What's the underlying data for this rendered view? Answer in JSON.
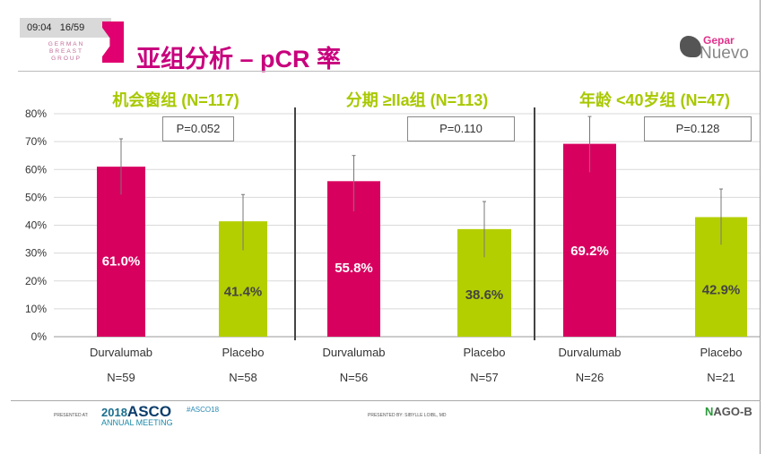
{
  "header": {
    "time": "09:04",
    "slide_counter": "16/59",
    "org_logo_text": "GERMAN BREAST GROUP",
    "title": "亚组分析 – pCR 率",
    "study_logo": {
      "line1": "Gepar",
      "line2": "Nuevo"
    }
  },
  "colors": {
    "durvalumab": "#d8005f",
    "placebo": "#b4cf00",
    "title": "#c8007d",
    "subtitle": "#a9c800"
  },
  "footer": {
    "presented_at": "PRESENTED AT:",
    "asco_year": "2018",
    "asco": "ASCO",
    "asco_meeting": "ANNUAL MEETING",
    "hashtag": "#ASCO18",
    "presented_by": "PRESENTED BY: SIBYLLE LOIBL, MD",
    "ago_logo": "AGO-B"
  },
  "chart_data": [
    {
      "type": "bar",
      "title": "机会窗组 (N=117)",
      "p_value": "P=0.052",
      "categories": [
        "Durvalumab",
        "Placebo"
      ],
      "n_labels": [
        "N=59",
        "N=58"
      ],
      "values": [
        61.0,
        41.4
      ],
      "data_labels": [
        "61.0%",
        "41.4%"
      ],
      "error": [
        [
          51,
          71
        ],
        [
          31,
          51
        ]
      ],
      "ylim": [
        0,
        80
      ],
      "yticks": [
        "0%",
        "10%",
        "20%",
        "30%",
        "40%",
        "50%",
        "60%",
        "70%",
        "80%"
      ],
      "grid": true
    },
    {
      "type": "bar",
      "title": "分期 ≥IIa组 (N=113)",
      "p_value": "P=0.110",
      "categories": [
        "Durvalumab",
        "Placebo"
      ],
      "n_labels": [
        "N=56",
        "N=57"
      ],
      "values": [
        55.8,
        38.6
      ],
      "data_labels": [
        "55.8%",
        "38.6%"
      ],
      "error": [
        [
          45,
          65
        ],
        [
          28.5,
          48.5
        ]
      ],
      "ylim": [
        0,
        80
      ],
      "grid": true
    },
    {
      "type": "bar",
      "title": "年龄 <40岁组 (N=47)",
      "p_value": "P=0.128",
      "categories": [
        "Durvalumab",
        "Placebo"
      ],
      "n_labels": [
        "N=26",
        "N=21"
      ],
      "values": [
        69.2,
        42.9
      ],
      "data_labels": [
        "69.2%",
        "42.9%"
      ],
      "error": [
        [
          59,
          79
        ],
        [
          33,
          53
        ]
      ],
      "ylim": [
        0,
        80
      ],
      "grid": true
    }
  ]
}
